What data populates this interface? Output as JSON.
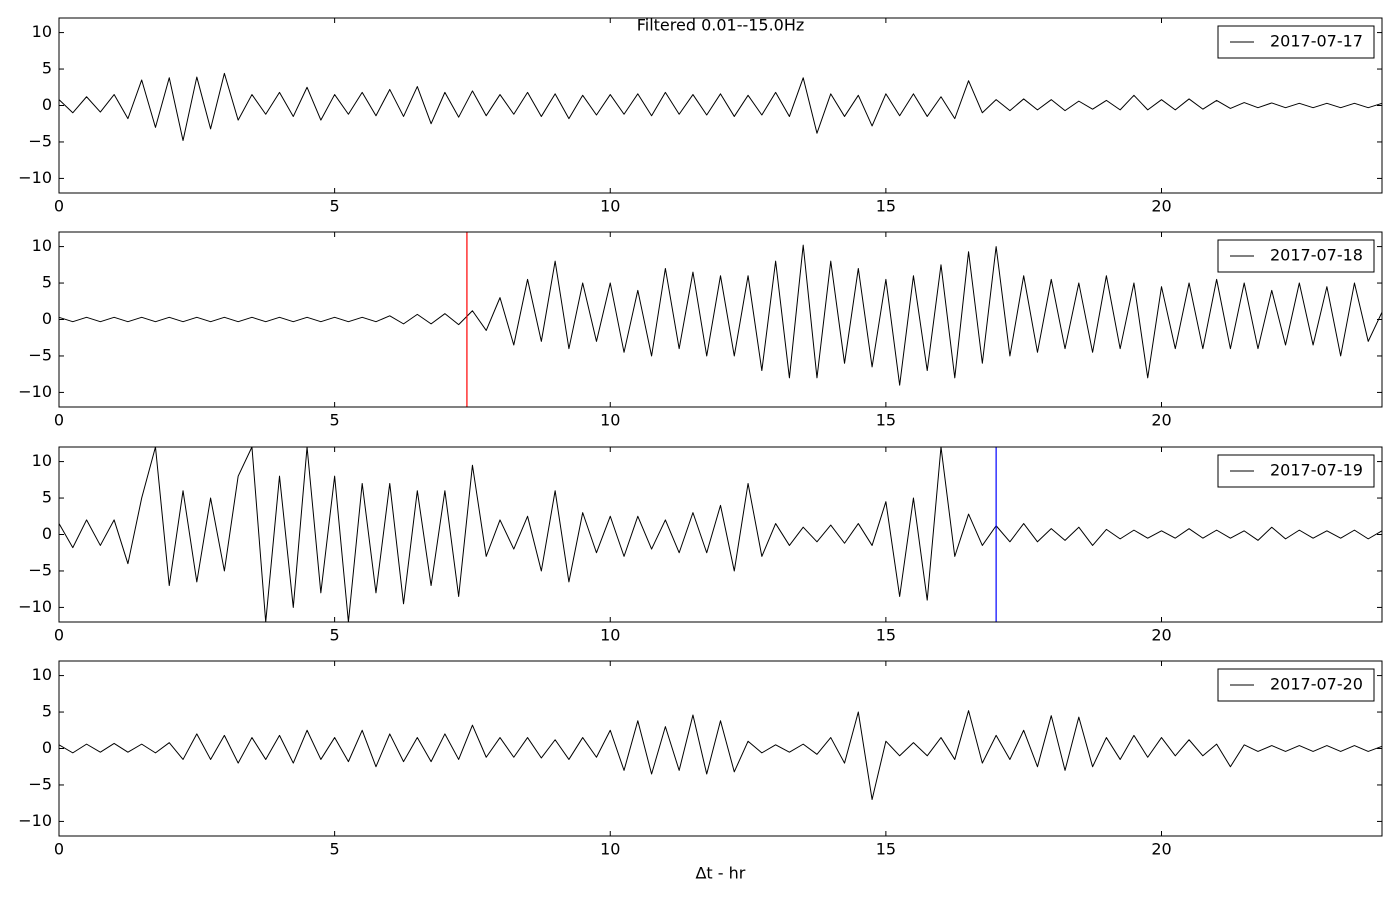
{
  "chart_data": [
    {
      "type": "line",
      "title": "Filtered 0.01--15.0Hz",
      "x": [
        0,
        0.25,
        0.5,
        0.75,
        1,
        1.25,
        1.5,
        1.75,
        2,
        2.25,
        2.5,
        2.75,
        3,
        3.25,
        3.5,
        3.75,
        4,
        4.25,
        4.5,
        4.75,
        5,
        5.25,
        5.5,
        5.75,
        6,
        6.25,
        6.5,
        6.75,
        7,
        7.25,
        7.5,
        7.75,
        8,
        8.25,
        8.5,
        8.75,
        9,
        9.25,
        9.5,
        9.75,
        10,
        10.25,
        10.5,
        10.75,
        11,
        11.25,
        11.5,
        11.75,
        12,
        12.25,
        12.5,
        12.75,
        13,
        13.25,
        13.5,
        13.75,
        14,
        14.25,
        14.5,
        14.75,
        15,
        15.25,
        15.5,
        15.75,
        16,
        16.25,
        16.5,
        16.75,
        17,
        17.25,
        17.5,
        17.75,
        18,
        18.25,
        18.5,
        18.75,
        19,
        19.25,
        19.5,
        19.75,
        20,
        20.25,
        20.5,
        20.75,
        21,
        21.25,
        21.5,
        21.75,
        22,
        22.25,
        22.5,
        22.75,
        23,
        23.25,
        23.5,
        23.75,
        24
      ],
      "series": [
        {
          "name": "2017-07-17",
          "color": "#000000",
          "values": [
            0.8,
            -1,
            1.2,
            -0.9,
            1.5,
            -1.8,
            3.5,
            -3,
            3.8,
            -4.8,
            3.9,
            -3.2,
            4.4,
            -2,
            1.5,
            -1.2,
            1.8,
            -1.5,
            2.5,
            -2,
            1.5,
            -1.2,
            1.8,
            -1.4,
            2.2,
            -1.5,
            2.6,
            -2.5,
            1.8,
            -1.6,
            2,
            -1.4,
            1.5,
            -1.2,
            1.8,
            -1.5,
            1.6,
            -1.8,
            1.4,
            -1.3,
            1.5,
            -1.2,
            1.6,
            -1.4,
            1.8,
            -1.2,
            1.5,
            -1.3,
            1.6,
            -1.5,
            1.4,
            -1.3,
            1.8,
            -1.5,
            3.8,
            -3.8,
            1.6,
            -1.5,
            1.4,
            -2.8,
            1.6,
            -1.4,
            1.6,
            -1.5,
            1.2,
            -1.8,
            3.4,
            -1,
            0.8,
            -0.7,
            0.9,
            -0.6,
            0.8,
            -0.7,
            0.6,
            -0.5,
            0.7,
            -0.6,
            1.4,
            -0.6,
            0.8,
            -0.6,
            0.9,
            -0.5,
            0.7,
            -0.4,
            0.4,
            -0.3,
            0.35,
            -0.3,
            0.3,
            -0.3,
            0.3,
            -0.3,
            0.3,
            -0.3,
            0.3
          ]
        }
      ],
      "xlim": [
        0,
        24
      ],
      "ylim": [
        -12,
        12
      ],
      "xticks": [
        0,
        5,
        10,
        15,
        20
      ],
      "yticks": [
        {
          "value": -10,
          "label": "−10"
        },
        {
          "value": -5,
          "label": "−5"
        },
        0,
        5,
        10
      ],
      "legend": "upper right",
      "vlines": []
    },
    {
      "type": "line",
      "x": [
        0,
        0.25,
        0.5,
        0.75,
        1,
        1.25,
        1.5,
        1.75,
        2,
        2.25,
        2.5,
        2.75,
        3,
        3.25,
        3.5,
        3.75,
        4,
        4.25,
        4.5,
        4.75,
        5,
        5.25,
        5.5,
        5.75,
        6,
        6.25,
        6.5,
        6.75,
        7,
        7.25,
        7.5,
        7.75,
        8,
        8.25,
        8.5,
        8.75,
        9,
        9.25,
        9.5,
        9.75,
        10,
        10.25,
        10.5,
        10.75,
        11,
        11.25,
        11.5,
        11.75,
        12,
        12.25,
        12.5,
        12.75,
        13,
        13.25,
        13.5,
        13.75,
        14,
        14.25,
        14.5,
        14.75,
        15,
        15.25,
        15.5,
        15.75,
        16,
        16.25,
        16.5,
        16.75,
        17,
        17.25,
        17.5,
        17.75,
        18,
        18.25,
        18.5,
        18.75,
        19,
        19.25,
        19.5,
        19.75,
        20,
        20.25,
        20.5,
        20.75,
        21,
        21.25,
        21.5,
        21.75,
        22,
        22.25,
        22.5,
        22.75,
        23,
        23.25,
        23.5,
        23.75,
        24
      ],
      "series": [
        {
          "name": "2017-07-18",
          "color": "#000000",
          "values": [
            0.3,
            -0.3,
            0.3,
            -0.3,
            0.3,
            -0.3,
            0.3,
            -0.3,
            0.3,
            -0.3,
            0.3,
            -0.3,
            0.3,
            -0.3,
            0.3,
            -0.3,
            0.3,
            -0.3,
            0.3,
            -0.3,
            0.3,
            -0.3,
            0.3,
            -0.3,
            0.5,
            -0.6,
            0.7,
            -0.6,
            0.8,
            -0.7,
            1.2,
            -1.5,
            3,
            -3.5,
            5.5,
            -3,
            8,
            -4,
            5,
            -3,
            5,
            -4.5,
            4,
            -5,
            7,
            -4,
            6.5,
            -5,
            6,
            -5,
            6,
            -7,
            8,
            -8,
            10.2,
            -8,
            8,
            -6,
            7,
            -6.5,
            5.5,
            -9,
            6,
            -7,
            7.5,
            -8,
            9.3,
            -6,
            10,
            -5,
            6,
            -4.5,
            5.5,
            -4,
            5,
            -4.5,
            6,
            -4,
            5,
            -8,
            4.5,
            -4,
            5,
            -4,
            5.5,
            -4,
            5,
            -4,
            4,
            -3.5,
            5,
            -3.5,
            4.5,
            -5,
            5,
            -3,
            1
          ]
        }
      ],
      "xlim": [
        0,
        24
      ],
      "ylim": [
        -12,
        12
      ],
      "xticks": [
        0,
        5,
        10,
        15,
        20
      ],
      "yticks": [
        {
          "value": -10,
          "label": "−10"
        },
        {
          "value": -5,
          "label": "−5"
        },
        0,
        5,
        10
      ],
      "legend": "upper right",
      "vlines": [
        {
          "x": 7.4,
          "color": "#ff0000"
        }
      ]
    },
    {
      "type": "line",
      "x": [
        0,
        0.25,
        0.5,
        0.75,
        1,
        1.25,
        1.5,
        1.75,
        2,
        2.25,
        2.5,
        2.75,
        3,
        3.25,
        3.5,
        3.75,
        4,
        4.25,
        4.5,
        4.75,
        5,
        5.25,
        5.5,
        5.75,
        6,
        6.25,
        6.5,
        6.75,
        7,
        7.25,
        7.5,
        7.75,
        8,
        8.25,
        8.5,
        8.75,
        9,
        9.25,
        9.5,
        9.75,
        10,
        10.25,
        10.5,
        10.75,
        11,
        11.25,
        11.5,
        11.75,
        12,
        12.25,
        12.5,
        12.75,
        13,
        13.25,
        13.5,
        13.75,
        14,
        14.25,
        14.5,
        14.75,
        15,
        15.25,
        15.5,
        15.75,
        16,
        16.25,
        16.5,
        16.75,
        17,
        17.25,
        17.5,
        17.75,
        18,
        18.25,
        18.5,
        18.75,
        19,
        19.25,
        19.5,
        19.75,
        20,
        20.25,
        20.5,
        20.75,
        21,
        21.25,
        21.5,
        21.75,
        22,
        22.25,
        22.5,
        22.75,
        23,
        23.25,
        23.5,
        23.75,
        24
      ],
      "series": [
        {
          "name": "2017-07-19",
          "color": "#000000",
          "values": [
            1.5,
            -1.8,
            2,
            -1.5,
            2,
            -4,
            5,
            12,
            -7,
            6,
            -6.5,
            5,
            -5,
            8,
            12,
            -12,
            8,
            -10,
            12,
            -8,
            8,
            -12,
            7,
            -8,
            7,
            -9.5,
            6,
            -7,
            6,
            -8.5,
            9.5,
            -3,
            2,
            -2,
            2.5,
            -5,
            6,
            -6.5,
            3,
            -2.5,
            2.5,
            -3,
            2.5,
            -2,
            2,
            -2.5,
            3,
            -2.5,
            4,
            -5,
            7,
            -3,
            1.5,
            -1.5,
            1,
            -1,
            1.3,
            -1.2,
            1.5,
            -1.5,
            4.5,
            -8.5,
            5,
            -9,
            12,
            -3,
            2.8,
            -1.5,
            1.2,
            -1,
            1.5,
            -1,
            0.8,
            -0.8,
            1,
            -1.5,
            0.7,
            -0.6,
            0.6,
            -0.5,
            0.5,
            -0.5,
            0.8,
            -0.5,
            0.6,
            -0.5,
            0.5,
            -0.8,
            1,
            -0.6,
            0.6,
            -0.5,
            0.5,
            -0.5,
            0.6,
            -0.6,
            0.5
          ]
        }
      ],
      "xlim": [
        0,
        24
      ],
      "ylim": [
        -12,
        12
      ],
      "xticks": [
        0,
        5,
        10,
        15,
        20
      ],
      "yticks": [
        {
          "value": -10,
          "label": "−10"
        },
        {
          "value": -5,
          "label": "−5"
        },
        0,
        5,
        10
      ],
      "legend": "upper right",
      "vlines": [
        {
          "x": 17,
          "color": "#0000ff"
        }
      ]
    },
    {
      "type": "line",
      "xlabel": "∆t - hr",
      "x": [
        0,
        0.25,
        0.5,
        0.75,
        1,
        1.25,
        1.5,
        1.75,
        2,
        2.25,
        2.5,
        2.75,
        3,
        3.25,
        3.5,
        3.75,
        4,
        4.25,
        4.5,
        4.75,
        5,
        5.25,
        5.5,
        5.75,
        6,
        6.25,
        6.5,
        6.75,
        7,
        7.25,
        7.5,
        7.75,
        8,
        8.25,
        8.5,
        8.75,
        9,
        9.25,
        9.5,
        9.75,
        10,
        10.25,
        10.5,
        10.75,
        11,
        11.25,
        11.5,
        11.75,
        12,
        12.25,
        12.5,
        12.75,
        13,
        13.25,
        13.5,
        13.75,
        14,
        14.25,
        14.5,
        14.75,
        15,
        15.25,
        15.5,
        15.75,
        16,
        16.25,
        16.5,
        16.75,
        17,
        17.25,
        17.5,
        17.75,
        18,
        18.25,
        18.5,
        18.75,
        19,
        19.25,
        19.5,
        19.75,
        20,
        20.25,
        20.5,
        20.75,
        21,
        21.25,
        21.5,
        21.75,
        22,
        22.25,
        22.5,
        22.75,
        23,
        23.25,
        23.5,
        23.75,
        24
      ],
      "series": [
        {
          "name": "2017-07-20",
          "color": "#000000",
          "values": [
            0.5,
            -0.6,
            0.6,
            -0.5,
            0.7,
            -0.5,
            0.6,
            -0.6,
            0.8,
            -1.5,
            2,
            -1.5,
            1.8,
            -2,
            1.5,
            -1.5,
            1.8,
            -2,
            2.5,
            -1.5,
            1.5,
            -1.8,
            2.5,
            -2.5,
            2,
            -1.8,
            1.5,
            -1.8,
            2,
            -1.5,
            3.2,
            -1.2,
            1.5,
            -1.2,
            1.5,
            -1.3,
            1.2,
            -1.5,
            1.5,
            -1.2,
            2.5,
            -3,
            3.8,
            -3.5,
            3,
            -3,
            4.6,
            -3.5,
            3.8,
            -3.2,
            1,
            -0.6,
            0.5,
            -0.5,
            0.6,
            -0.8,
            1.5,
            -2,
            5,
            -7,
            1,
            -1,
            0.8,
            -1,
            1.5,
            -1.5,
            5.2,
            -2,
            1.8,
            -1.5,
            2.5,
            -2.5,
            4.5,
            -3,
            4.3,
            -2.5,
            1.5,
            -1.5,
            1.8,
            -1.2,
            1.5,
            -1,
            1.2,
            -1,
            0.6,
            -2.5,
            0.5,
            -0.4,
            0.4,
            -0.4,
            0.4,
            -0.4,
            0.4,
            -0.4,
            0.4,
            -0.4,
            0.3
          ]
        }
      ],
      "xlim": [
        0,
        24
      ],
      "ylim": [
        -12,
        12
      ],
      "xticks": [
        0,
        5,
        10,
        15,
        20
      ],
      "yticks": [
        {
          "value": -10,
          "label": "−10"
        },
        {
          "value": -5,
          "label": "−5"
        },
        0,
        5,
        10
      ],
      "legend": "upper right",
      "vlines": []
    }
  ]
}
